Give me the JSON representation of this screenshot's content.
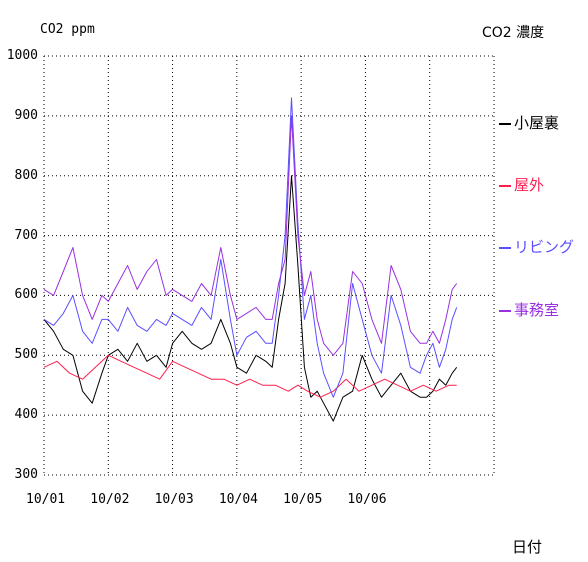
{
  "chart_data": {
    "type": "line",
    "title": "CO2 濃度",
    "ylabel": "CO2 ppm",
    "xlabel": "日付",
    "ylim": [
      300,
      1000
    ],
    "xlim": [
      0,
      7
    ],
    "yticks": [
      "300",
      "400",
      "500",
      "600",
      "700",
      "800",
      "900",
      "1000"
    ],
    "xticks": [
      "10/01",
      "10/02",
      "10/03",
      "10/04",
      "10/05",
      "10/06"
    ],
    "grid": true,
    "legend_position": "right",
    "series": [
      {
        "name": "小屋裏",
        "color": "#000000",
        "x": [
          0,
          0.15,
          0.3,
          0.45,
          0.6,
          0.75,
          0.9,
          1.0,
          1.15,
          1.3,
          1.45,
          1.6,
          1.75,
          1.9,
          2.0,
          2.15,
          2.3,
          2.45,
          2.6,
          2.75,
          2.9,
          3.0,
          3.15,
          3.3,
          3.45,
          3.55,
          3.65,
          3.75,
          3.85,
          3.95,
          4.05,
          4.15,
          4.25,
          4.35,
          4.5,
          4.65,
          4.8,
          4.95,
          5.1,
          5.25,
          5.4,
          5.55,
          5.7,
          5.85,
          5.95,
          6.05,
          6.15,
          6.25,
          6.35,
          6.42
        ],
        "values": [
          560,
          540,
          510,
          500,
          440,
          420,
          470,
          500,
          510,
          490,
          520,
          490,
          500,
          480,
          520,
          540,
          520,
          510,
          520,
          560,
          520,
          480,
          470,
          500,
          490,
          480,
          560,
          620,
          800,
          650,
          480,
          430,
          440,
          420,
          390,
          430,
          440,
          500,
          460,
          430,
          450,
          470,
          440,
          430,
          430,
          440,
          460,
          450,
          470,
          480
        ]
      },
      {
        "name": "屋外",
        "color": "#ff1f4f",
        "x": [
          0,
          0.2,
          0.4,
          0.6,
          0.8,
          1.0,
          1.2,
          1.4,
          1.6,
          1.8,
          2.0,
          2.2,
          2.4,
          2.6,
          2.8,
          3.0,
          3.2,
          3.4,
          3.6,
          3.8,
          3.95,
          4.1,
          4.3,
          4.5,
          4.7,
          4.9,
          5.1,
          5.3,
          5.5,
          5.7,
          5.9,
          6.1,
          6.3,
          6.42
        ],
        "values": [
          480,
          490,
          470,
          460,
          480,
          500,
          490,
          480,
          470,
          460,
          490,
          480,
          470,
          460,
          460,
          450,
          460,
          450,
          450,
          440,
          450,
          440,
          430,
          440,
          460,
          440,
          450,
          460,
          450,
          440,
          450,
          440,
          450,
          450
        ]
      },
      {
        "name": "リビング",
        "color": "#5a4fff",
        "x": [
          0,
          0.15,
          0.3,
          0.45,
          0.6,
          0.75,
          0.9,
          1.0,
          1.15,
          1.3,
          1.45,
          1.6,
          1.75,
          1.9,
          2.0,
          2.15,
          2.3,
          2.45,
          2.6,
          2.75,
          2.9,
          3.0,
          3.15,
          3.3,
          3.45,
          3.55,
          3.65,
          3.75,
          3.85,
          3.95,
          4.05,
          4.15,
          4.25,
          4.35,
          4.5,
          4.65,
          4.8,
          4.95,
          5.1,
          5.25,
          5.4,
          5.55,
          5.7,
          5.85,
          5.95,
          6.05,
          6.15,
          6.25,
          6.35,
          6.42
        ],
        "values": [
          560,
          550,
          570,
          600,
          540,
          520,
          560,
          560,
          540,
          580,
          550,
          540,
          560,
          550,
          570,
          560,
          550,
          580,
          560,
          660,
          560,
          500,
          530,
          540,
          520,
          520,
          600,
          700,
          930,
          720,
          560,
          600,
          520,
          470,
          430,
          470,
          620,
          560,
          500,
          470,
          600,
          550,
          480,
          470,
          500,
          520,
          480,
          510,
          560,
          580
        ]
      },
      {
        "name": "事務室",
        "color": "#9a30e0",
        "x": [
          0,
          0.15,
          0.3,
          0.45,
          0.6,
          0.75,
          0.9,
          1.0,
          1.15,
          1.3,
          1.45,
          1.6,
          1.75,
          1.9,
          2.0,
          2.15,
          2.3,
          2.45,
          2.6,
          2.75,
          2.9,
          3.0,
          3.15,
          3.3,
          3.45,
          3.55,
          3.65,
          3.75,
          3.85,
          3.95,
          4.05,
          4.15,
          4.25,
          4.35,
          4.5,
          4.65,
          4.8,
          4.95,
          5.1,
          5.25,
          5.4,
          5.55,
          5.7,
          5.85,
          5.95,
          6.05,
          6.15,
          6.25,
          6.35,
          6.42
        ],
        "values": [
          610,
          600,
          640,
          680,
          600,
          560,
          600,
          590,
          620,
          650,
          610,
          640,
          660,
          600,
          610,
          600,
          590,
          620,
          600,
          680,
          600,
          560,
          570,
          580,
          560,
          560,
          620,
          660,
          900,
          700,
          600,
          640,
          560,
          520,
          500,
          520,
          640,
          620,
          560,
          520,
          650,
          610,
          540,
          520,
          520,
          540,
          520,
          560,
          610,
          620
        ]
      }
    ]
  },
  "legend": [
    {
      "label": "小屋裏",
      "color": "#000000"
    },
    {
      "label": "屋外",
      "color": "#ff1f4f"
    },
    {
      "label": "リビング",
      "color": "#5a4fff"
    },
    {
      "label": "事務室",
      "color": "#9a30e0"
    }
  ]
}
